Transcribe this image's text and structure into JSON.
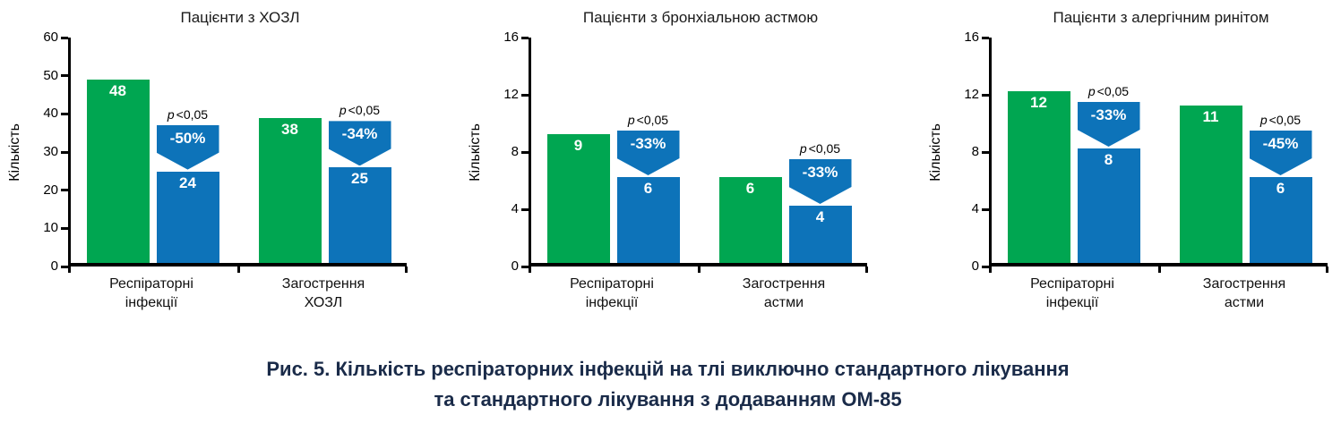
{
  "caption": {
    "line1": "Рис. 5. Кількість респіраторних інфекцій на тлі виключно стандартного лікування",
    "line2": "та стандартного лікування з додаванням ОМ-85"
  },
  "colors": {
    "green": "#00a651",
    "blue": "#0d73b9",
    "axis": "#000000",
    "caption_text": "#1a2b49"
  },
  "chart_data": [
    {
      "type": "bar",
      "title": "Пацієнти з ХОЗЛ",
      "ylabel": "Кількість",
      "ylim": [
        0,
        60
      ],
      "yticks": [
        0,
        10,
        20,
        30,
        40,
        50,
        60
      ],
      "categories": [
        [
          "Респіраторні",
          "інфекції"
        ],
        [
          "Загострення",
          "ХОЗЛ"
        ]
      ],
      "series": [
        {
          "color": "green",
          "values": [
            48,
            38
          ]
        },
        {
          "color": "blue",
          "values": [
            24,
            25
          ]
        }
      ],
      "annotations": [
        {
          "pct": "-50%",
          "p": "p<0,05"
        },
        {
          "pct": "-34%",
          "p": "p<0,05"
        }
      ],
      "grid": false,
      "legend": "none"
    },
    {
      "type": "bar",
      "title": "Пацієнти з бронхіальною астмою",
      "ylabel": "Кількість",
      "ylim": [
        0,
        16
      ],
      "yticks": [
        0,
        4,
        8,
        12,
        16
      ],
      "categories": [
        [
          "Респіраторні",
          "інфекції"
        ],
        [
          "Загострення",
          "астми"
        ]
      ],
      "series": [
        {
          "color": "green",
          "values": [
            9,
            6
          ]
        },
        {
          "color": "blue",
          "values": [
            6,
            4
          ]
        }
      ],
      "annotations": [
        {
          "pct": "-33%",
          "p": "p<0,05"
        },
        {
          "pct": "-33%",
          "p": "p<0,05"
        }
      ],
      "grid": false,
      "legend": "none"
    },
    {
      "type": "bar",
      "title": "Пацієнти з алергічним ринітом",
      "ylabel": "Кількість",
      "ylim": [
        0,
        16
      ],
      "yticks": [
        0,
        4,
        8,
        12,
        16
      ],
      "categories": [
        [
          "Респіраторні",
          "інфекції"
        ],
        [
          "Загострення",
          "астми"
        ]
      ],
      "series": [
        {
          "color": "green",
          "values": [
            12,
            11
          ]
        },
        {
          "color": "blue",
          "values": [
            8,
            6
          ]
        }
      ],
      "annotations": [
        {
          "pct": "-33%",
          "p": "p<0,05"
        },
        {
          "pct": "-45%",
          "p": "p<0,05"
        }
      ],
      "grid": false,
      "legend": "none"
    }
  ]
}
